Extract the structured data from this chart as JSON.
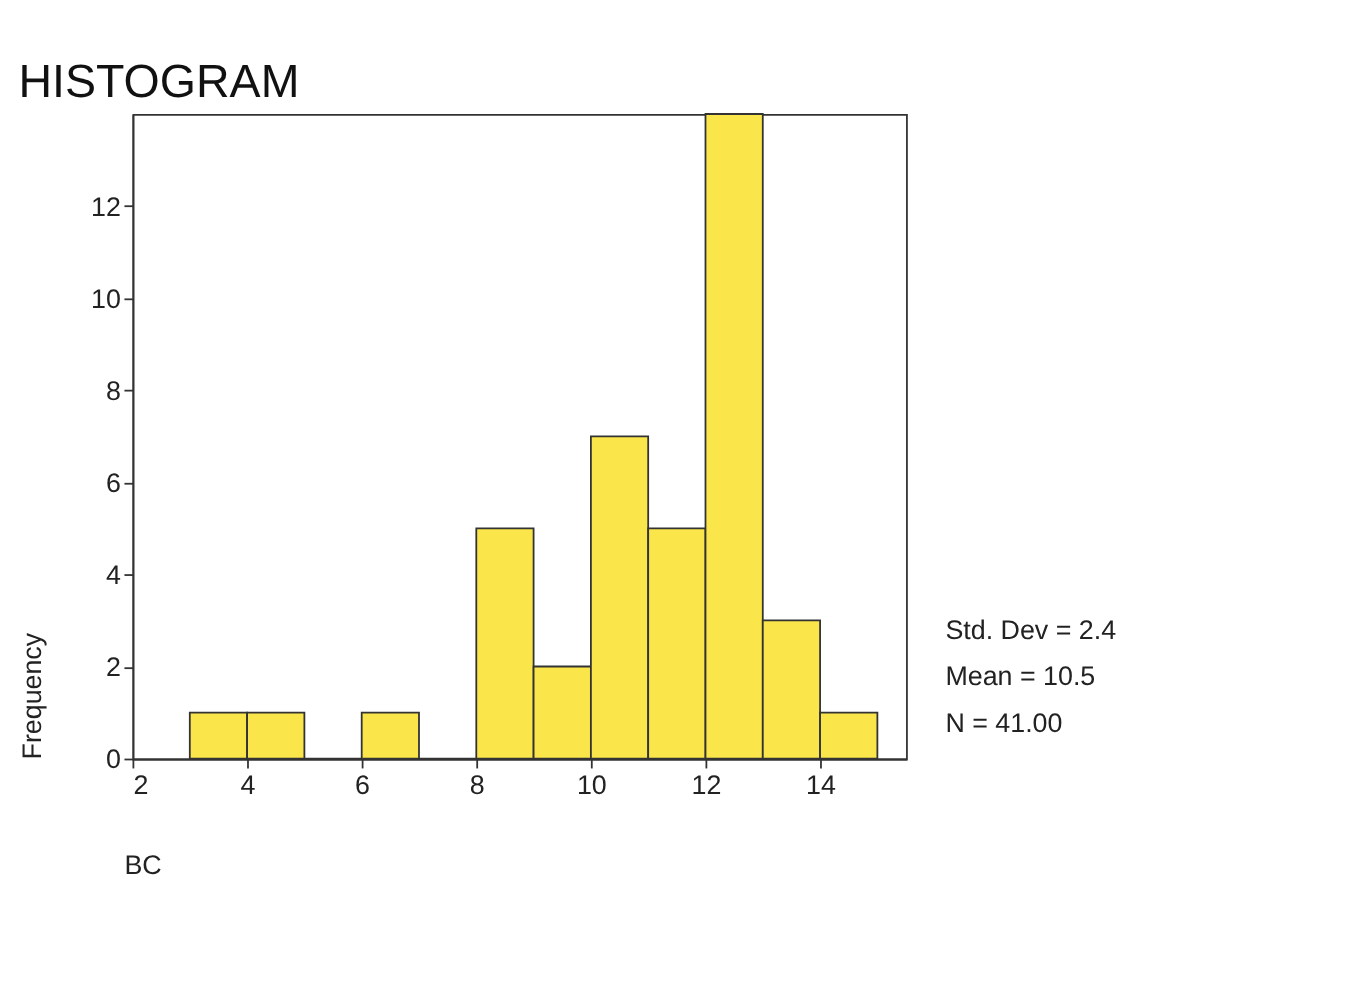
{
  "chart_data": {
    "type": "histogram",
    "title": "HISTOGRAM",
    "xlabel": "BC",
    "ylabel": "Frequency",
    "bins": [
      3,
      4,
      5,
      6,
      7,
      8,
      9,
      10,
      11,
      12,
      13,
      14,
      15
    ],
    "values": [
      1,
      1,
      0,
      1,
      0,
      5,
      2,
      7,
      5,
      14,
      3,
      1
    ],
    "color": "#fae64a",
    "xlim": [
      2,
      15.5
    ],
    "xticks": [
      2,
      4,
      6,
      8,
      10,
      12,
      14
    ],
    "ylim": [
      0,
      14
    ],
    "yticks": [
      0,
      2,
      4,
      6,
      8,
      10,
      12
    ],
    "grid": false,
    "annotations": [
      "Std. Dev = 2.4",
      "Mean = 10.5",
      "N = 41.00"
    ]
  }
}
